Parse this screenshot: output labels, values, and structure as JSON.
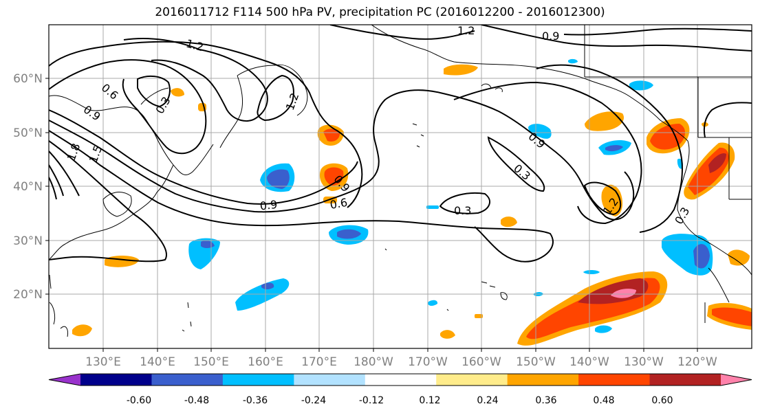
{
  "title": "2016011712 F114 500 hPa PV, precipitation PC (2016012200 - 2016012300)",
  "map": {
    "lon_labels": [
      "130°E",
      "140°E",
      "150°E",
      "160°E",
      "170°E",
      "180°W",
      "170°W",
      "160°W",
      "150°W",
      "140°W",
      "130°W",
      "120°W"
    ],
    "lat_labels": [
      "60°N",
      "50°N",
      "40°N",
      "30°N",
      "20°N"
    ],
    "contour_labels": [
      "1.2",
      "1.2",
      "0.9",
      "0.6",
      "0.9",
      "1.8",
      "1.5",
      "0.3",
      "1.2",
      "0.9",
      "0.6",
      "0.3",
      "0.9",
      "0.3",
      "1.2",
      "0.3",
      "0.9"
    ],
    "grid": true
  },
  "colorbar": {
    "colors": [
      "#9932cc",
      "#00008b",
      "#3a5fcd",
      "#00bfff",
      "#b2e2ff",
      "#ffffff",
      "#ffec8b",
      "#ffa500",
      "#ff4500",
      "#b22222",
      "#ff82ab"
    ],
    "tick_labels": [
      "-0.60",
      "-0.48",
      "-0.36",
      "-0.24",
      "-0.12",
      "0.12",
      "0.24",
      "0.36",
      "0.48",
      "0.60"
    ],
    "extend": "both"
  }
}
